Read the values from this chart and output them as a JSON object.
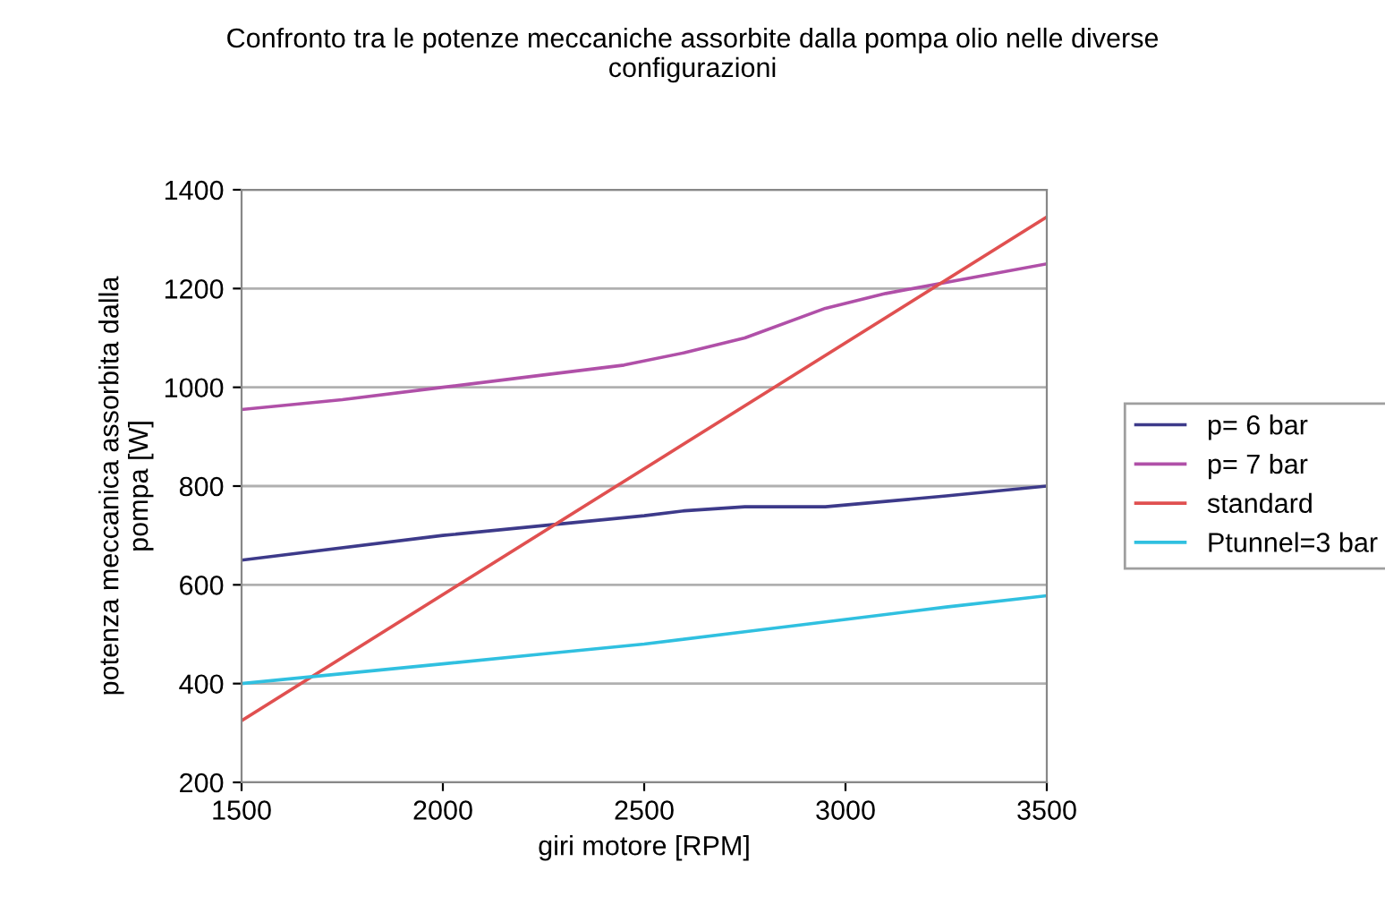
{
  "chart_data": {
    "type": "line",
    "title": "Confronto tra le potenze meccaniche assorbite dalla pompa olio nelle diverse\nconfigurazioni",
    "xlabel": "giri motore [RPM]",
    "ylabel": "potenza meccanica assorbita dalla\npompa [W]",
    "xlim": [
      1500,
      3500
    ],
    "xticks": [
      1500,
      2000,
      2500,
      3000,
      3500
    ],
    "ylim": [
      200,
      1400
    ],
    "yticks": [
      200,
      400,
      600,
      800,
      1000,
      1200,
      1400
    ],
    "grid": "y",
    "legend": "right",
    "marker": "none",
    "line_style": "solid",
    "series": [
      {
        "name": "p= 6 bar",
        "color": "#3d3a8a",
        "x": [
          1500,
          2000,
          2250,
          2500,
          2600,
          2750,
          2950,
          3250,
          3500
        ],
        "values": [
          650,
          700,
          720,
          740,
          750,
          758,
          758,
          780,
          800
        ]
      },
      {
        "name": "p= 7 bar",
        "color": "#b050a8",
        "x": [
          1500,
          1750,
          2000,
          2250,
          2450,
          2600,
          2750,
          2950,
          3100,
          3500
        ],
        "values": [
          955,
          975,
          1000,
          1025,
          1045,
          1070,
          1100,
          1160,
          1190,
          1250
        ]
      },
      {
        "name": "standard",
        "color": "#e05050",
        "x": [
          1500,
          3500
        ],
        "values": [
          325,
          1345
        ]
      },
      {
        "name": "Ptunnel=3 bar",
        "color": "#30c0e0",
        "x": [
          1500,
          1750,
          2000,
          2250,
          2500,
          2750,
          2900,
          3000,
          3250,
          3500
        ],
        "values": [
          400,
          420,
          440,
          460,
          480,
          505,
          520,
          530,
          555,
          578
        ]
      }
    ]
  }
}
